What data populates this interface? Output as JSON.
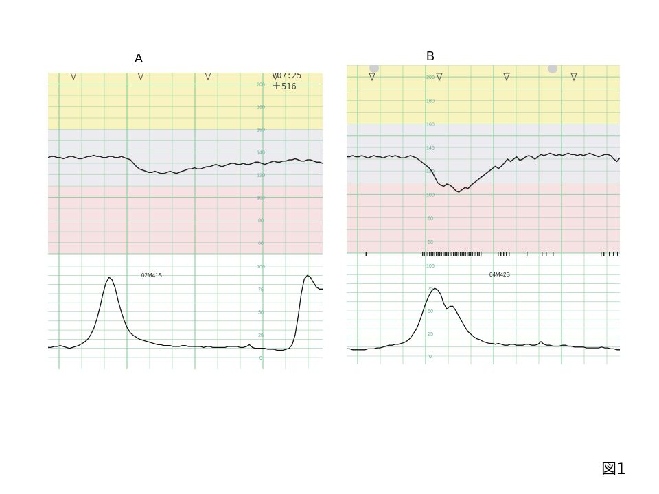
{
  "panels": {
    "a": {
      "label": "A",
      "time": "V07:25",
      "count": "516",
      "contraction_interval": "02M41S"
    },
    "b": {
      "label": "B",
      "contraction_interval": "04M42S"
    }
  },
  "figure_label": "図1",
  "colors": {
    "zone_high": "#f7f4c0",
    "zone_mid": "#ececf0",
    "zone_low": "#f6e1e3",
    "grid": "#8fd3a4",
    "trace": "#222222"
  },
  "chart_data": [
    {
      "type": "line",
      "panel": "A",
      "fhr": {
        "ylim": [
          50,
          210
        ],
        "y_ticks": [
          60,
          80,
          100,
          120,
          140,
          160,
          180,
          200
        ],
        "values": [
          135,
          136,
          136,
          135,
          135,
          134,
          135,
          136,
          136,
          135,
          134,
          134,
          135,
          136,
          136,
          137,
          136,
          136,
          135,
          135,
          136,
          136,
          135,
          135,
          136,
          135,
          134,
          133,
          130,
          127,
          125,
          124,
          123,
          122,
          122,
          123,
          122,
          121,
          121,
          122,
          123,
          122,
          121,
          122,
          123,
          124,
          125,
          125,
          126,
          125,
          125,
          126,
          127,
          127,
          128,
          129,
          128,
          127,
          128,
          129,
          130,
          130,
          129,
          129,
          130,
          129,
          129,
          130,
          131,
          131,
          130,
          129,
          130,
          131,
          132,
          131,
          131,
          132,
          132,
          133,
          133,
          134,
          133,
          132,
          132,
          133,
          133,
          132,
          131,
          131,
          130
        ]
      },
      "toco": {
        "ylim": [
          0,
          100
        ],
        "y_ticks": [
          0,
          25,
          50,
          75,
          100
        ],
        "values": [
          11,
          11,
          12,
          12,
          13,
          12,
          11,
          10,
          11,
          12,
          13,
          15,
          17,
          20,
          25,
          32,
          42,
          55,
          70,
          82,
          88,
          85,
          76,
          62,
          50,
          40,
          32,
          27,
          24,
          22,
          20,
          19,
          18,
          17,
          16,
          15,
          14,
          14,
          13,
          13,
          13,
          12,
          12,
          12,
          13,
          13,
          12,
          12,
          12,
          12,
          12,
          11,
          12,
          12,
          11,
          11,
          11,
          11,
          11,
          12,
          12,
          12,
          12,
          11,
          11,
          12,
          14,
          11,
          10,
          10,
          10,
          10,
          9,
          9,
          9,
          8,
          8,
          8,
          9,
          10,
          14,
          25,
          45,
          70,
          86,
          90,
          88,
          82,
          77,
          75,
          75
        ]
      }
    },
    {
      "type": "line",
      "panel": "B",
      "fhr": {
        "ylim": [
          50,
          210
        ],
        "y_ticks": [
          60,
          80,
          100,
          120,
          140,
          160,
          180,
          200
        ],
        "values": [
          132,
          132,
          133,
          132,
          132,
          133,
          132,
          131,
          132,
          133,
          132,
          132,
          131,
          132,
          133,
          132,
          133,
          132,
          131,
          131,
          132,
          133,
          132,
          131,
          129,
          127,
          125,
          123,
          120,
          115,
          110,
          108,
          107,
          109,
          108,
          106,
          103,
          102,
          104,
          106,
          105,
          108,
          110,
          112,
          114,
          116,
          118,
          120,
          122,
          124,
          122,
          124,
          127,
          130,
          128,
          130,
          132,
          129,
          130,
          132,
          133,
          132,
          130,
          132,
          134,
          133,
          134,
          135,
          134,
          133,
          134,
          133,
          134,
          135,
          134,
          134,
          133,
          134,
          133,
          134,
          135,
          134,
          133,
          132,
          133,
          134,
          134,
          133,
          130,
          128,
          131
        ]
      },
      "toco": {
        "ylim": [
          0,
          100
        ],
        "y_ticks": [
          0,
          25,
          50,
          75,
          100
        ],
        "values": [
          8,
          8,
          7,
          7,
          7,
          7,
          7,
          8,
          8,
          8,
          9,
          9,
          10,
          11,
          12,
          12,
          13,
          13,
          14,
          15,
          17,
          20,
          25,
          30,
          38,
          48,
          58,
          66,
          72,
          75,
          73,
          68,
          58,
          52,
          55,
          55,
          50,
          44,
          38,
          32,
          27,
          24,
          21,
          19,
          18,
          16,
          15,
          14,
          14,
          13,
          14,
          13,
          12,
          12,
          13,
          13,
          12,
          12,
          12,
          13,
          13,
          12,
          12,
          13,
          16,
          13,
          12,
          12,
          11,
          11,
          11,
          12,
          12,
          11,
          11,
          10,
          10,
          10,
          10,
          9,
          9,
          9,
          9,
          9,
          10,
          9,
          9,
          8,
          8,
          7,
          7
        ]
      }
    }
  ]
}
